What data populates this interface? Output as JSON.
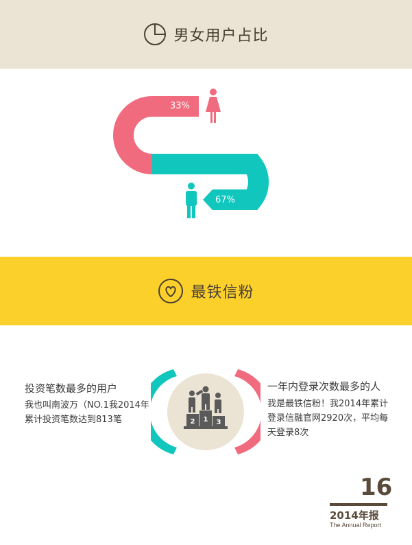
{
  "section1": {
    "title": "男女用户占比",
    "icon": "pie-chart-icon",
    "female": {
      "percent": "33%",
      "value": 33,
      "color": "#f06b7e",
      "icon": "female-figure-icon"
    },
    "male": {
      "percent": "67%",
      "value": 67,
      "color": "#10c6bd",
      "icon": "male-figure-icon"
    }
  },
  "section2": {
    "title": "最铁信粉",
    "icon": "heart-icon",
    "left": {
      "title": "投资笔数最多的用户",
      "body": "我也叫南波万（NO.1我2014年累计投资笔数达到813笔"
    },
    "right": {
      "title": "一年内登录次数最多的人",
      "body": "我是最铁信粉！我2014年累计登录信融官网2920次，平均每天登录8次"
    },
    "podium": {
      "icon": "podium-icon",
      "places": [
        "2",
        "1",
        "3"
      ]
    }
  },
  "footer": {
    "page_number": "16",
    "year_label": "2014年报",
    "subtitle": "The Annual Report"
  },
  "colors": {
    "top_band": "#ebe3d3",
    "mid_band": "#fcd02b",
    "pink": "#f06b7e",
    "teal": "#10c6bd",
    "brown": "#5a4a3a"
  }
}
